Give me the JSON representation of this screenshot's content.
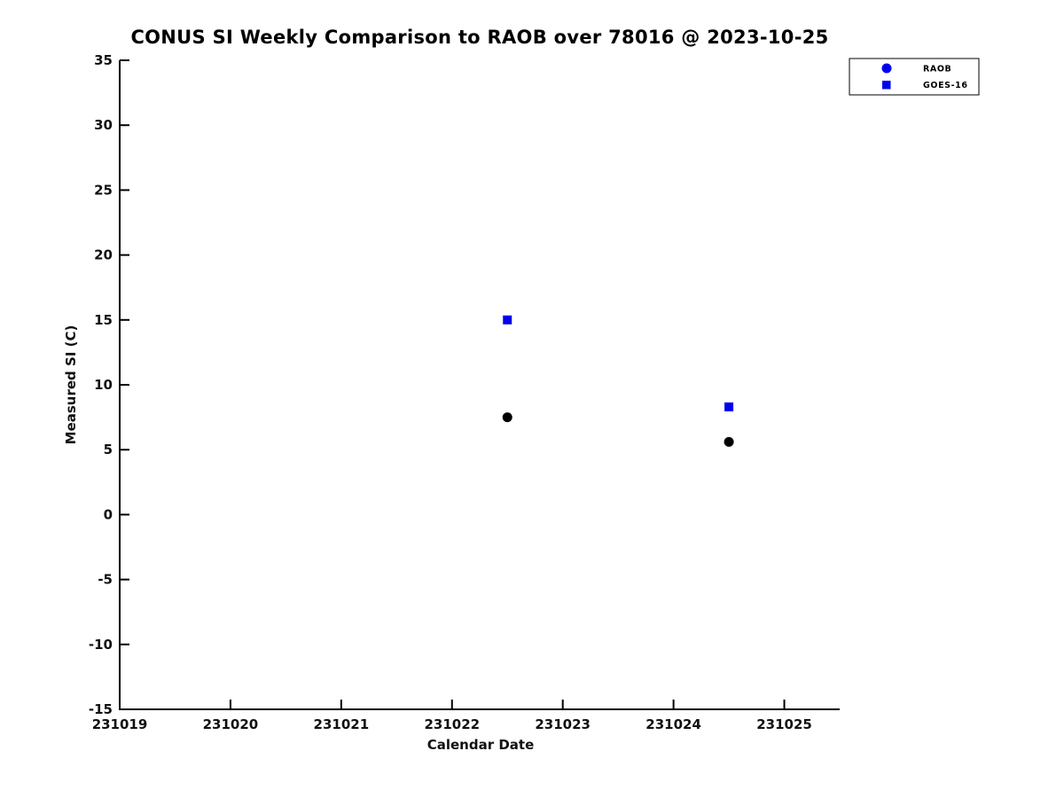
{
  "chart_data": {
    "type": "scatter",
    "title": "CONUS SI Weekly Comparison to RAOB over 78016 @ 2023-10-25",
    "xlabel": "Calendar Date",
    "ylabel": "Measured SI (C)",
    "xlim": [
      231019,
      231025.5
    ],
    "ylim": [
      -15,
      35
    ],
    "x_ticks": [
      231019,
      231020,
      231021,
      231022,
      231023,
      231024,
      231025
    ],
    "y_ticks": [
      -15,
      -10,
      -5,
      0,
      5,
      10,
      15,
      20,
      25,
      30,
      35
    ],
    "grid": false,
    "background": "#ffffff",
    "axis_color": "#000000",
    "legend_position": "top-right",
    "series": [
      {
        "name": "RAOB",
        "marker": "circle",
        "data_color": "#000000",
        "legend_color": "#0000ee",
        "points": [
          {
            "x": 231022.5,
            "y": 7.5
          },
          {
            "x": 231024.5,
            "y": 5.6
          }
        ]
      },
      {
        "name": "GOES-16",
        "marker": "square",
        "data_color": "#0000ee",
        "legend_color": "#0000ee",
        "points": [
          {
            "x": 231022.5,
            "y": 15.0
          },
          {
            "x": 231024.5,
            "y": 8.3
          }
        ]
      }
    ]
  }
}
